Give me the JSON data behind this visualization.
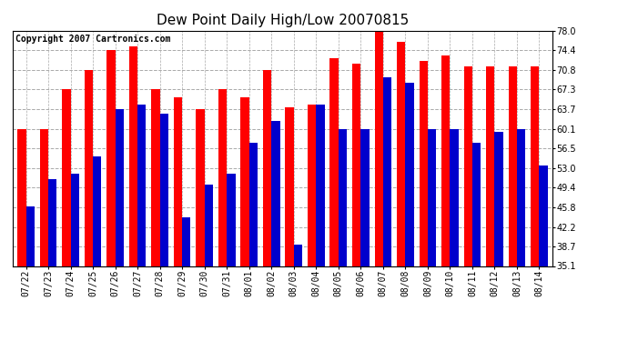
{
  "title": "Dew Point Daily High/Low 20070815",
  "copyright": "Copyright 2007 Cartronics.com",
  "dates": [
    "07/22",
    "07/23",
    "07/24",
    "07/25",
    "07/26",
    "07/27",
    "07/28",
    "07/29",
    "07/30",
    "07/31",
    "08/01",
    "08/02",
    "08/03",
    "08/04",
    "08/05",
    "08/06",
    "08/07",
    "08/08",
    "08/09",
    "08/10",
    "08/11",
    "08/12",
    "08/13",
    "08/14"
  ],
  "high": [
    60.1,
    60.1,
    67.3,
    70.8,
    74.4,
    75.2,
    67.3,
    65.8,
    63.7,
    67.3,
    65.8,
    70.8,
    64.0,
    64.5,
    73.0,
    72.0,
    78.0,
    76.0,
    72.5,
    73.5,
    71.5,
    71.5,
    71.5,
    71.5
  ],
  "low": [
    46.0,
    51.0,
    52.0,
    55.0,
    63.7,
    64.5,
    62.8,
    44.0,
    50.0,
    52.0,
    57.5,
    61.5,
    39.0,
    64.5,
    60.1,
    60.1,
    69.5,
    68.5,
    60.1,
    60.1,
    57.5,
    59.5,
    60.1,
    53.5
  ],
  "ylim": [
    35.1,
    78.0
  ],
  "yticks": [
    35.1,
    38.7,
    42.2,
    45.8,
    49.4,
    53.0,
    56.5,
    60.1,
    63.7,
    67.3,
    70.8,
    74.4,
    78.0
  ],
  "bar_width": 0.38,
  "high_color": "#FF0000",
  "low_color": "#0000CC",
  "bg_color": "#FFFFFF",
  "grid_color": "#AAAAAA",
  "title_fontsize": 11,
  "tick_fontsize": 7,
  "copyright_fontsize": 7
}
